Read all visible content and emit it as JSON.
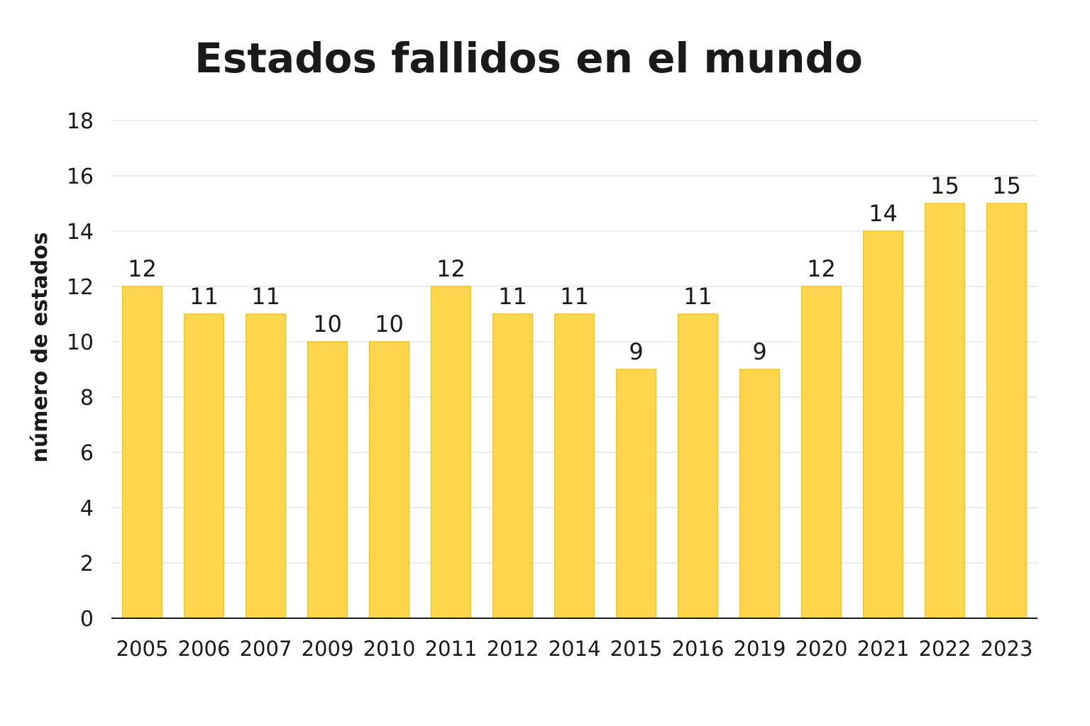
{
  "chart_data": {
    "type": "bar",
    "title": "Estados fallidos en el mundo",
    "xlabel": "",
    "ylabel": "número de estados",
    "categories": [
      "2005",
      "2006",
      "2007",
      "2009",
      "2010",
      "2011",
      "2012",
      "2014",
      "2015",
      "2016",
      "2019",
      "2020",
      "2021",
      "2022",
      "2023"
    ],
    "values": [
      12,
      11,
      11,
      10,
      10,
      12,
      11,
      11,
      9,
      11,
      9,
      12,
      14,
      15,
      15
    ],
    "ylim": [
      0,
      18
    ],
    "yticks": [
      0,
      2,
      4,
      6,
      8,
      10,
      12,
      14,
      16,
      18
    ],
    "grid": true,
    "legend": "none",
    "bar_color": "#fdd64e",
    "bar_edge_color": "#f5c518"
  }
}
